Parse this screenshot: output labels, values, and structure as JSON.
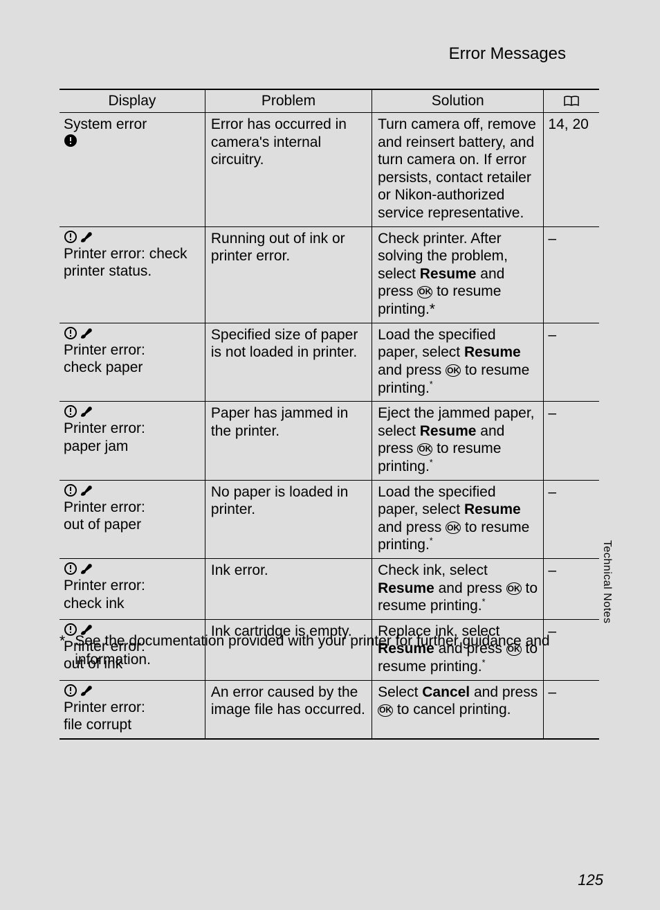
{
  "header_title": "Error Messages",
  "side_label": "Technical Notes",
  "page_number": "125",
  "footnote_marker": "*",
  "footnote_text": "See the documentation provided with your printer for further guidance and information.",
  "ok_label": "OK",
  "table": {
    "columns": {
      "display": "Display",
      "problem": "Problem",
      "solution": "Solution"
    },
    "rows": [
      {
        "display_icons": [
          "lock"
        ],
        "display_text_line1": "System error",
        "display_text_line2": "",
        "problem": "Error has occurred in camera's internal circuitry.",
        "solution_segments": [
          {
            "t": "text",
            "v": "Turn camera off, remove and reinsert battery, and turn camera on. If error persists, contact retailer or Nikon-authorized service representative."
          }
        ],
        "ref": "14, 20"
      },
      {
        "display_icons": [
          "warn",
          "brush"
        ],
        "display_text_line1": "Printer error: check printer status.",
        "display_text_line2": "",
        "problem": "Running out of ink or printer error.",
        "solution_segments": [
          {
            "t": "text",
            "v": "Check printer. After solving the problem, select "
          },
          {
            "t": "bold",
            "v": "Resume"
          },
          {
            "t": "text",
            "v": " and press "
          },
          {
            "t": "ok"
          },
          {
            "t": "text",
            "v": " to resume printing.*"
          }
        ],
        "ref": "–"
      },
      {
        "display_icons": [
          "warn",
          "brush"
        ],
        "display_text_line1": "Printer error:",
        "display_text_line2": "check paper",
        "problem": "Specified size of paper is not loaded in printer.",
        "solution_segments": [
          {
            "t": "text",
            "v": "Load the specified paper, select "
          },
          {
            "t": "bold",
            "v": "Resume"
          },
          {
            "t": "text",
            "v": " and press "
          },
          {
            "t": "ok"
          },
          {
            "t": "text",
            "v": " to resume printing."
          },
          {
            "t": "sup",
            "v": "*"
          }
        ],
        "ref": "–"
      },
      {
        "display_icons": [
          "warn",
          "brush"
        ],
        "display_text_line1": "Printer error:",
        "display_text_line2": "paper jam",
        "problem": "Paper has jammed in the printer.",
        "solution_segments": [
          {
            "t": "text",
            "v": "Eject the jammed paper, select "
          },
          {
            "t": "bold",
            "v": "Resume"
          },
          {
            "t": "text",
            "v": " and press "
          },
          {
            "t": "ok"
          },
          {
            "t": "text",
            "v": " to resume printing."
          },
          {
            "t": "sup",
            "v": "*"
          }
        ],
        "ref": "–"
      },
      {
        "display_icons": [
          "warn",
          "brush"
        ],
        "display_text_line1": "Printer error:",
        "display_text_line2": "out of paper",
        "problem": "No paper is loaded in printer.",
        "solution_segments": [
          {
            "t": "text",
            "v": "Load the specified paper, select "
          },
          {
            "t": "bold",
            "v": "Resume"
          },
          {
            "t": "text",
            "v": " and press "
          },
          {
            "t": "ok"
          },
          {
            "t": "text",
            "v": " to resume printing."
          },
          {
            "t": "sup",
            "v": "*"
          }
        ],
        "ref": "–"
      },
      {
        "display_icons": [
          "warn",
          "brush"
        ],
        "display_text_line1": "Printer error:",
        "display_text_line2": "check ink",
        "problem": "Ink error.",
        "solution_segments": [
          {
            "t": "text",
            "v": "Check ink, select "
          },
          {
            "t": "bold",
            "v": "Resume"
          },
          {
            "t": "text",
            "v": " and press "
          },
          {
            "t": "ok"
          },
          {
            "t": "text",
            "v": " to resume printing."
          },
          {
            "t": "sup",
            "v": "*"
          }
        ],
        "ref": "–"
      },
      {
        "display_icons": [
          "warn",
          "brush"
        ],
        "display_text_line1": "Printer error:",
        "display_text_line2": "out of ink",
        "problem": "Ink cartridge is empty.",
        "solution_segments": [
          {
            "t": "text",
            "v": "Replace ink, select "
          },
          {
            "t": "bold",
            "v": "Resume"
          },
          {
            "t": "text",
            "v": " and press "
          },
          {
            "t": "ok"
          },
          {
            "t": "text",
            "v": " to resume printing."
          },
          {
            "t": "sup",
            "v": "*"
          }
        ],
        "ref": "–"
      },
      {
        "display_icons": [
          "warn",
          "brush"
        ],
        "display_text_line1": "Printer error:",
        "display_text_line2": "file corrupt",
        "problem": "An error caused by the image file has occurred.",
        "solution_segments": [
          {
            "t": "text",
            "v": "Select "
          },
          {
            "t": "bold",
            "v": "Cancel"
          },
          {
            "t": "text",
            "v": " and press "
          },
          {
            "t": "ok"
          },
          {
            "t": "text",
            "v": " to cancel printing."
          }
        ],
        "ref": "–"
      }
    ]
  },
  "colors": {
    "background": "#dedede",
    "text": "#000000",
    "border": "#000000"
  }
}
